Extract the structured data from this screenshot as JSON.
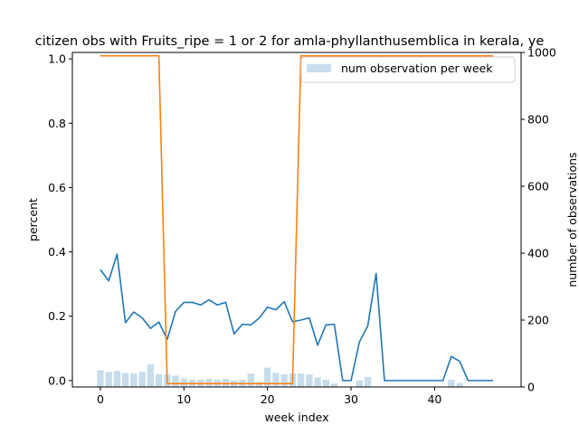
{
  "chart_data": {
    "type": "line",
    "title": "citizen obs with Fruits_ripe = 1 or 2 for amla-phyllanthusemblica in kerala, ye",
    "xlabel": "week index",
    "ylabel": "percent",
    "y2label": "number of observations",
    "xlim": [
      -3.35,
      50.35
    ],
    "ylim": [
      -0.02,
      1.02
    ],
    "y2lim": [
      0,
      1000
    ],
    "xticks": [
      "0",
      "10",
      "20",
      "30",
      "40"
    ],
    "yticks": [
      "0.0",
      "0.2",
      "0.4",
      "0.6",
      "0.8",
      "1.0"
    ],
    "y2ticks": [
      "0",
      "200",
      "400",
      "600",
      "800",
      "1000"
    ],
    "legend": {
      "placement": "upper right",
      "entries": [
        "num observation per week"
      ]
    },
    "grid": false,
    "colors": {
      "percent_line": "#1f77b4",
      "threshold_line": "#ff7f0e",
      "bars": "#1f77b4"
    },
    "x": [
      0,
      1,
      2,
      3,
      4,
      5,
      6,
      7,
      8,
      9,
      10,
      11,
      12,
      13,
      14,
      15,
      16,
      17,
      18,
      19,
      20,
      21,
      22,
      23,
      24,
      25,
      26,
      27,
      28,
      29,
      30,
      31,
      32,
      33,
      34,
      35,
      36,
      37,
      38,
      39,
      40,
      41,
      42,
      43,
      44,
      45,
      46,
      47
    ],
    "series": [
      {
        "axis": "left",
        "values": [
          0.345,
          0.31,
          0.393,
          0.18,
          0.213,
          0.195,
          0.162,
          0.182,
          0.128,
          0.215,
          0.243,
          0.243,
          0.235,
          0.251,
          0.235,
          0.243,
          0.145,
          0.175,
          0.173,
          0.194,
          0.228,
          0.22,
          0.245,
          0.183,
          0.188,
          0.195,
          0.11,
          0.173,
          0.175,
          0.0,
          0.0,
          0.12,
          0.17,
          0.333,
          0.0,
          0.0,
          0.0,
          0.0,
          0.0,
          0.0,
          0.0,
          0.0,
          0.075,
          0.06,
          0.0,
          0.0,
          0.0,
          0.0
        ]
      },
      {
        "axis": "right",
        "values": [
          990,
          990,
          990,
          990,
          990,
          990,
          990,
          990,
          10,
          10,
          10,
          10,
          10,
          10,
          10,
          10,
          10,
          10,
          10,
          10,
          10,
          10,
          10,
          10,
          990,
          990,
          990,
          990,
          990,
          990,
          990,
          990,
          990,
          990,
          990,
          990,
          990,
          990,
          990,
          990,
          990,
          990,
          990,
          990,
          990,
          990,
          990,
          990
        ]
      },
      {
        "name": "num observation per week",
        "type": "bar",
        "axis": "right",
        "values": [
          50,
          45,
          48,
          42,
          40,
          45,
          68,
          38,
          38,
          34,
          26,
          22,
          22,
          24,
          22,
          24,
          20,
          22,
          40,
          15,
          58,
          42,
          38,
          40,
          40,
          38,
          28,
          22,
          10,
          0,
          0,
          20,
          30,
          0,
          0,
          0,
          0,
          0,
          0,
          0,
          0,
          0,
          22,
          12,
          0,
          0,
          0,
          0
        ]
      }
    ]
  }
}
